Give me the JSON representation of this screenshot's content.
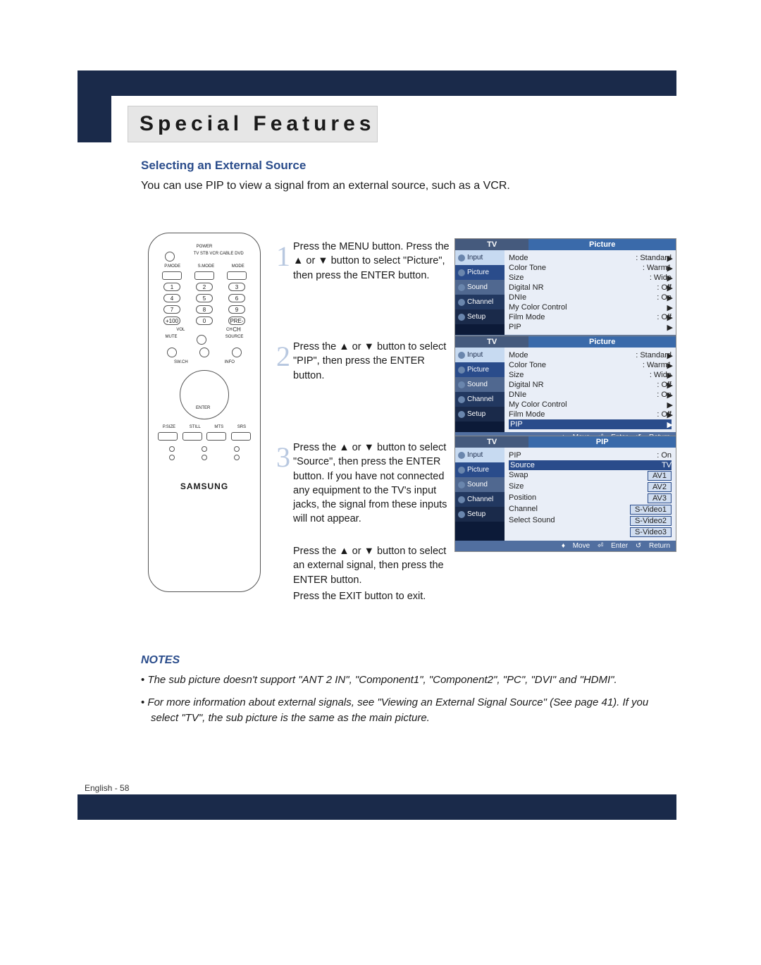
{
  "section_title": "Special Features",
  "subtitle": "Selecting an External Source",
  "intro": "You can use PIP to view a signal from an external source, such as a VCR.",
  "remote": {
    "power": "POWER",
    "mode_row": [
      "TV",
      "STB",
      "VCR",
      "CABLE",
      "DVD"
    ],
    "btn_row": [
      "P.MODE",
      "S.MODE",
      "MODE"
    ],
    "nums": [
      "1",
      "2",
      "3",
      "4",
      "5",
      "6",
      "7",
      "8",
      "9",
      "+100",
      "0",
      "PRE-CH"
    ],
    "vol": "VOL",
    "ch": "CH",
    "mute": "MUTE",
    "source": "SOURCE",
    "swoch": "SW.CH",
    "info": "INFO",
    "bottom_row": [
      "P.SIZE",
      "STILL",
      "MTS",
      "SRS"
    ],
    "brand": "SAMSUNG"
  },
  "steps": {
    "s1_num": "1",
    "s1": "Press the MENU button. Press the ▲ or ▼ button to select \"Picture\", then press the ENTER button.",
    "s2_num": "2",
    "s2": "Press the ▲ or ▼ button to select \"PIP\", then press the ENTER button.",
    "s3_num": "3",
    "s3": "Press the ▲ or ▼ button to select \"Source\", then press the ENTER button. If you have not connected any equipment to the TV's input jacks, the signal from these inputs will not appear.",
    "s3b": "Press the ▲ or ▼ button to select an external signal, then press the ENTER button.",
    "s3c": "Press the EXIT button to exit."
  },
  "osd": {
    "common": {
      "tv": "TV",
      "tabs": [
        "Input",
        "Picture",
        "Sound",
        "Channel",
        "Setup"
      ],
      "footer": {
        "move": "Move",
        "enter": "Enter",
        "return": "Return"
      }
    },
    "picture": {
      "title": "Picture",
      "rows": [
        {
          "k": "Mode",
          "v": ": Standard"
        },
        {
          "k": "Color Tone",
          "v": ": Warm1"
        },
        {
          "k": "Size",
          "v": ": Wide"
        },
        {
          "k": "Digital NR",
          "v": ": Off"
        },
        {
          "k": "DNIe",
          "v": ": On"
        },
        {
          "k": "My Color Control",
          "v": ""
        },
        {
          "k": "Film Mode",
          "v": ": Off"
        },
        {
          "k": "PIP",
          "v": ""
        }
      ]
    },
    "pip": {
      "title": "PIP",
      "rows": [
        {
          "k": "PIP",
          "v": ": On"
        },
        {
          "k": "Source",
          "v": "TV",
          "sel": true
        },
        {
          "k": "Swap",
          "v": "AV1",
          "box": true
        },
        {
          "k": "Size",
          "v": "AV2",
          "box": true
        },
        {
          "k": "Position",
          "v": "AV3",
          "box": true
        },
        {
          "k": "Channel",
          "v": "S-Video1",
          "box": true
        },
        {
          "k": "Select Sound",
          "v": "S-Video2",
          "box": true
        },
        {
          "k": "",
          "v": "S-Video3",
          "box": true
        }
      ]
    }
  },
  "notes_title": "NOTES",
  "notes": [
    "The sub picture doesn't support \"ANT 2 IN\", \"Component1\", \"Component2\", \"PC\", \"DVI\" and \"HDMI\".",
    "For more information about external signals, see \"Viewing an External Signal Source\" (See page 41). If you select \"TV\", the sub picture is the same as the main picture."
  ],
  "footer": "English - 58",
  "colors": {
    "navy": "#1a2a4a",
    "accent": "#2a4c8b",
    "pale": "#b8c8e0",
    "osd_bg": "#0c1a38",
    "osd_head": "#3a6aaa",
    "osd_foot": "#516fa0"
  }
}
